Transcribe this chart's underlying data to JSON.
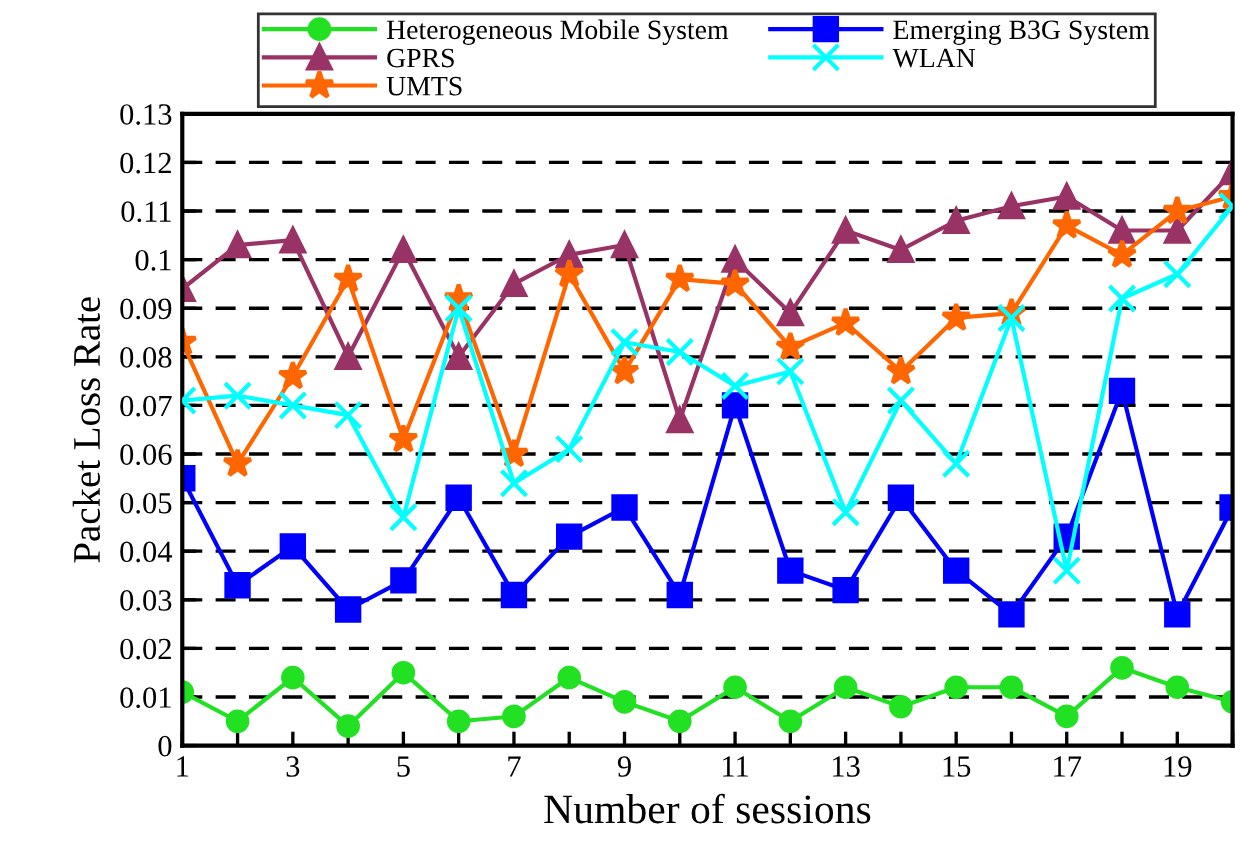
{
  "chart_data": {
    "type": "line",
    "xlabel": "Number of sessions",
    "ylabel": "Packet Loss Rate",
    "x": [
      1,
      2,
      3,
      4,
      5,
      6,
      7,
      8,
      9,
      10,
      11,
      12,
      13,
      14,
      15,
      16,
      17,
      18,
      19,
      20
    ],
    "xlim": [
      1,
      20
    ],
    "xticks": [
      1,
      {
        "value": 2,
        "label": null
      },
      3,
      {
        "value": 4,
        "label": null
      },
      5,
      {
        "value": 6,
        "label": null
      },
      7,
      {
        "value": 8,
        "label": null
      },
      9,
      {
        "value": 10,
        "label": null
      },
      11,
      {
        "value": 12,
        "label": null
      },
      13,
      {
        "value": 14,
        "label": null
      },
      15,
      {
        "value": 16,
        "label": null
      },
      17,
      {
        "value": 18,
        "label": null
      },
      19,
      {
        "value": 20,
        "label": null
      }
    ],
    "ylim": [
      0,
      0.13
    ],
    "yticks": [
      0,
      0.01,
      0.02,
      0.03,
      0.04,
      0.05,
      0.06,
      0.07,
      0.08,
      0.09,
      0.1,
      0.11,
      0.12,
      0.13
    ],
    "grid": "y",
    "line_style": "solid",
    "legend": "top",
    "series": [
      {
        "name": "Heterogeneous Mobile System",
        "color": "#22e022",
        "marker": "circle",
        "values": [
          0.011,
          0.005,
          0.014,
          0.004,
          0.015,
          0.005,
          0.006,
          0.014,
          0.009,
          0.005,
          0.012,
          0.005,
          0.012,
          0.008,
          0.012,
          0.012,
          0.006,
          0.016,
          0.012,
          0.009
        ]
      },
      {
        "name": "Emerging B3G System",
        "color": "#0000ff",
        "marker": "square",
        "values": [
          0.055,
          0.033,
          0.041,
          0.028,
          0.034,
          0.051,
          0.031,
          0.043,
          0.049,
          0.031,
          0.07,
          0.036,
          0.032,
          0.051,
          0.036,
          0.027,
          0.043,
          0.073,
          0.027,
          0.049
        ]
      },
      {
        "name": "GPRS",
        "color": "#993366",
        "marker": "triangle",
        "values": [
          0.094,
          0.103,
          0.104,
          0.08,
          0.102,
          0.08,
          0.095,
          0.101,
          0.103,
          0.067,
          0.1,
          0.089,
          0.106,
          0.102,
          0.108,
          0.111,
          0.113,
          0.106,
          0.106,
          0.118
        ]
      },
      {
        "name": "WLAN",
        "color": "#00ffff",
        "marker": "cross",
        "values": [
          0.071,
          0.072,
          0.07,
          0.068,
          0.047,
          0.09,
          0.054,
          0.061,
          0.083,
          0.081,
          0.074,
          0.077,
          0.048,
          0.071,
          0.058,
          0.088,
          0.036,
          0.092,
          0.097,
          0.111
        ]
      },
      {
        "name": "UMTS",
        "color": "#ff6600",
        "marker": "star",
        "values": [
          0.083,
          0.058,
          0.076,
          0.096,
          0.063,
          0.092,
          0.06,
          0.097,
          0.077,
          0.096,
          0.095,
          0.082,
          0.087,
          0.077,
          0.088,
          0.089,
          0.107,
          0.101,
          0.11,
          0.113
        ]
      }
    ]
  }
}
